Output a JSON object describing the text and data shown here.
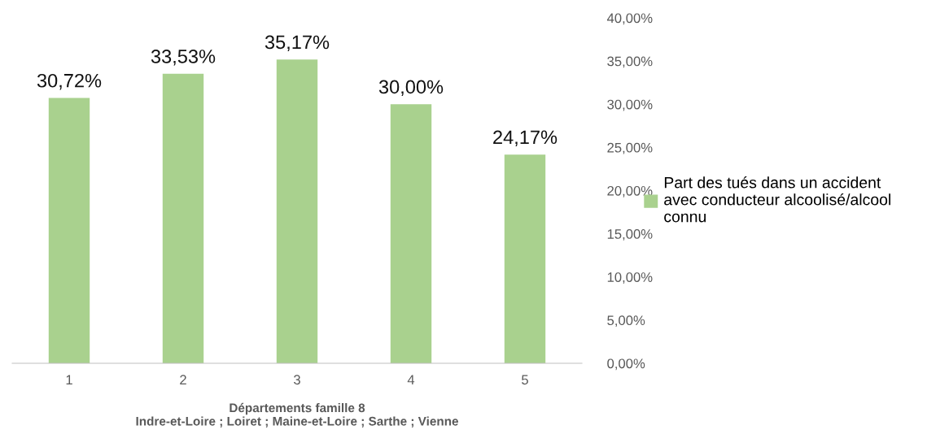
{
  "chart_data": {
    "type": "bar",
    "xlabel": "Départements famille 8\nIndre-et-Loire ; Loiret ; Maine-et-Loire ; Sarthe ; Vienne",
    "categories": [
      "1",
      "2",
      "3",
      "4",
      "5"
    ],
    "series": [
      {
        "name": "Part des tués dans un accident\navec conducteur alcoolisé/alcool\nconnu",
        "color": "#a9d18e",
        "values": [
          30.72,
          33.53,
          35.17,
          30.0,
          24.17
        ],
        "value_labels": [
          "30,72%",
          "33,53%",
          "35,17%",
          "30,00%",
          "24,17%"
        ]
      }
    ],
    "ylim": [
      0,
      40
    ],
    "yticks": [
      {
        "value": 0,
        "label": "0,00%"
      },
      {
        "value": 5,
        "label": "5,00%"
      },
      {
        "value": 10,
        "label": "10,00%"
      },
      {
        "value": 15,
        "label": "15,00%"
      },
      {
        "value": 20,
        "label": "20,00%"
      },
      {
        "value": 25,
        "label": "25,00%"
      },
      {
        "value": 30,
        "label": "30,00%"
      },
      {
        "value": 35,
        "label": "35,00%"
      },
      {
        "value": 40,
        "label": "40,00%"
      }
    ],
    "grid": false,
    "legend": "right"
  }
}
